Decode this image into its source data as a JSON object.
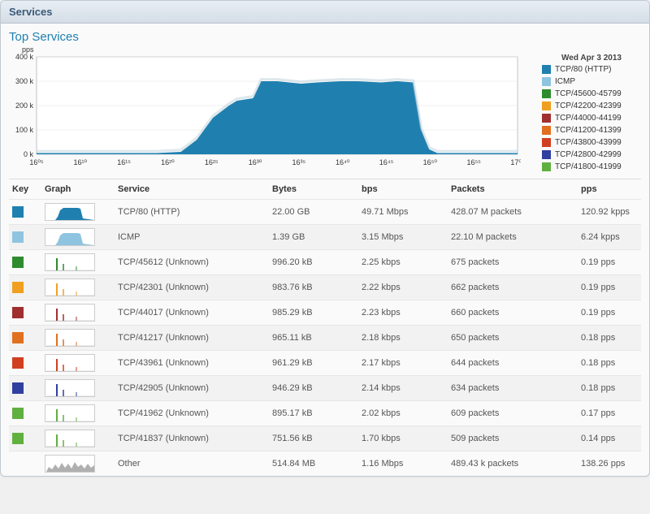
{
  "panel": {
    "title": "Services",
    "section": "Top Services"
  },
  "chart": {
    "date_label": "Wed Apr 3 2013",
    "y_unit": "pps",
    "type": "area",
    "ylim": [
      0,
      400000
    ],
    "yticks": [
      "0 k",
      "100 k",
      "200 k",
      "300 k",
      "400 k"
    ],
    "xticks": [
      "16⁰⁵",
      "16¹⁰",
      "16¹⁵",
      "16²⁰",
      "16²⁵",
      "16³⁰",
      "16³⁵",
      "16⁴⁰",
      "16⁴⁵",
      "16⁵⁰",
      "16⁵⁵",
      "17⁰⁰"
    ],
    "series_fill": "#1f80b0",
    "series_top": "#c8d8e0",
    "grid_color": "#e0e0e0",
    "axis_color": "#888888",
    "bg": "#ffffff",
    "data": [
      [
        0,
        5000
      ],
      [
        5,
        5000
      ],
      [
        10,
        5000
      ],
      [
        15,
        5000
      ],
      [
        18,
        10000
      ],
      [
        20,
        60000
      ],
      [
        22,
        150000
      ],
      [
        24,
        200000
      ],
      [
        25,
        220000
      ],
      [
        27,
        230000
      ],
      [
        28,
        300000
      ],
      [
        30,
        300000
      ],
      [
        33,
        290000
      ],
      [
        35,
        295000
      ],
      [
        38,
        300000
      ],
      [
        40,
        300000
      ],
      [
        43,
        295000
      ],
      [
        45,
        300000
      ],
      [
        47,
        295000
      ],
      [
        48,
        100000
      ],
      [
        49,
        20000
      ],
      [
        50,
        5000
      ],
      [
        55,
        5000
      ],
      [
        60,
        5000
      ]
    ]
  },
  "legend": [
    {
      "label": "TCP/80 (HTTP)",
      "color": "#1f80b0"
    },
    {
      "label": "ICMP",
      "color": "#8fc4e0"
    },
    {
      "label": "TCP/45600-45799",
      "color": "#2e8b2e"
    },
    {
      "label": "TCP/42200-42399",
      "color": "#f0a020"
    },
    {
      "label": "TCP/44000-44199",
      "color": "#a03030"
    },
    {
      "label": "TCP/41200-41399",
      "color": "#e07020"
    },
    {
      "label": "TCP/43800-43999",
      "color": "#d04020"
    },
    {
      "label": "TCP/42800-42999",
      "color": "#3040a0"
    },
    {
      "label": "TCP/41800-41999",
      "color": "#60b040"
    }
  ],
  "columns": {
    "key": "Key",
    "graph": "Graph",
    "service": "Service",
    "bytes": "Bytes",
    "bps": "bps",
    "packets": "Packets",
    "pps": "pps"
  },
  "rows": [
    {
      "color": "#1f80b0",
      "spark": "area-blue",
      "service": "TCP/80 (HTTP)",
      "bytes": "22.00 GB",
      "bps": "49.71 Mbps",
      "packets": "428.07 M packets",
      "pps": "120.92 kpps"
    },
    {
      "color": "#8fc4e0",
      "spark": "area-lightblue",
      "service": "ICMP",
      "bytes": "1.39 GB",
      "bps": "3.15 Mbps",
      "packets": "22.10 M packets",
      "pps": "6.24 kpps"
    },
    {
      "color": "#2e8b2e",
      "spark": "spike-green",
      "service": "TCP/45612 (Unknown)",
      "bytes": "996.20 kB",
      "bps": "2.25 kbps",
      "packets": "675 packets",
      "pps": "0.19 pps"
    },
    {
      "color": "#f0a020",
      "spark": "spike-yellow",
      "service": "TCP/42301 (Unknown)",
      "bytes": "983.76 kB",
      "bps": "2.22 kbps",
      "packets": "662 packets",
      "pps": "0.19 pps"
    },
    {
      "color": "#a03030",
      "spark": "spike-darkred",
      "service": "TCP/44017 (Unknown)",
      "bytes": "985.29 kB",
      "bps": "2.23 kbps",
      "packets": "660 packets",
      "pps": "0.19 pps"
    },
    {
      "color": "#e07020",
      "spark": "spike-orange",
      "service": "TCP/41217 (Unknown)",
      "bytes": "965.11 kB",
      "bps": "2.18 kbps",
      "packets": "650 packets",
      "pps": "0.18 pps"
    },
    {
      "color": "#d04020",
      "spark": "spike-red",
      "service": "TCP/43961 (Unknown)",
      "bytes": "961.29 kB",
      "bps": "2.17 kbps",
      "packets": "644 packets",
      "pps": "0.18 pps"
    },
    {
      "color": "#3040a0",
      "spark": "spike-blue",
      "service": "TCP/42905 (Unknown)",
      "bytes": "946.29 kB",
      "bps": "2.14 kbps",
      "packets": "634 packets",
      "pps": "0.18 pps"
    },
    {
      "color": "#60b040",
      "spark": "spike-lightgreen",
      "service": "TCP/41962 (Unknown)",
      "bytes": "895.17 kB",
      "bps": "2.02 kbps",
      "packets": "609 packets",
      "pps": "0.17 pps"
    },
    {
      "color": "#60b040",
      "spark": "spike-lightgreen2",
      "service": "TCP/41837 (Unknown)",
      "bytes": "751.56 kB",
      "bps": "1.70 kbps",
      "packets": "509 packets",
      "pps": "0.14 pps"
    },
    {
      "color": "",
      "spark": "area-gray",
      "service": "Other",
      "bytes": "514.84 MB",
      "bps": "1.16 Mbps",
      "packets": "489.43 k packets",
      "pps": "138.26 pps"
    }
  ]
}
